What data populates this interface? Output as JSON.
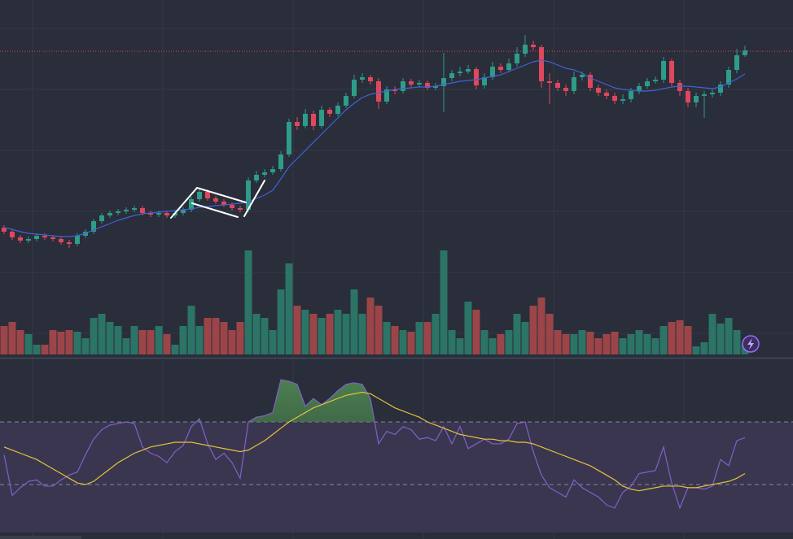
{
  "chart_data": [
    {
      "type": "candlestick",
      "up_color": "#2e9c88",
      "down_color": "#e0475d",
      "categories": [
        null,
        null,
        null,
        null,
        null,
        null,
        null,
        null,
        null,
        null,
        null,
        null,
        null,
        null,
        null,
        null,
        null,
        null,
        null,
        null,
        null,
        null,
        null,
        null,
        null,
        null,
        null,
        null,
        null,
        null,
        null,
        null,
        null,
        null,
        null,
        null,
        null,
        null,
        null,
        null,
        null,
        null,
        null,
        null,
        null,
        null,
        null,
        null,
        null,
        null,
        null,
        null,
        null,
        null,
        null,
        null,
        null,
        null,
        null,
        null,
        null,
        null,
        null,
        null,
        null,
        null,
        null,
        null,
        null,
        null,
        null,
        null,
        null,
        null,
        null,
        null,
        null,
        null,
        null,
        null,
        null,
        null,
        null,
        null,
        null,
        null,
        null,
        null,
        null,
        null,
        null,
        null
      ],
      "open": [
        120,
        115,
        108,
        104,
        106,
        110,
        108,
        106,
        102,
        100,
        110,
        115,
        128,
        135,
        138,
        140,
        142,
        144,
        138,
        136,
        138,
        135,
        138,
        142,
        155,
        164,
        156,
        152,
        148,
        144,
        142,
        178,
        185,
        188,
        192,
        210,
        250,
        245,
        260,
        245,
        265,
        260,
        270,
        282,
        302,
        305,
        300,
        275,
        290,
        288,
        300,
        296,
        298,
        292,
        294,
        304,
        310,
        312,
        315,
        295,
        305,
        318,
        314,
        322,
        334,
        345,
        342,
        300,
        298,
        292,
        288,
        305,
        308,
        292,
        286,
        282,
        276,
        278,
        288,
        294,
        300,
        302,
        325,
        298,
        288,
        274,
        282,
        284,
        286,
        296,
        314,
        332
      ],
      "high": [
        123,
        118,
        111,
        109,
        113,
        113,
        111,
        109,
        105,
        113,
        118,
        131,
        138,
        141,
        143,
        145,
        147,
        147,
        141,
        141,
        141,
        141,
        145,
        158,
        168,
        167,
        159,
        155,
        151,
        147,
        182,
        190,
        192,
        196,
        214,
        254,
        256,
        266,
        264,
        270,
        268,
        274,
        286,
        308,
        310,
        308,
        304,
        294,
        294,
        304,
        303,
        302,
        301,
        298,
        335,
        314,
        318,
        320,
        318,
        310,
        324,
        322,
        328,
        342,
        357,
        350,
        345,
        310,
        302,
        296,
        312,
        312,
        311,
        296,
        290,
        286,
        284,
        292,
        298,
        304,
        306,
        330,
        328,
        302,
        292,
        286,
        288,
        290,
        300,
        318,
        340,
        344
      ],
      "low": [
        112,
        105,
        101,
        101,
        103,
        105,
        103,
        99,
        95,
        97,
        107,
        112,
        125,
        132,
        135,
        137,
        139,
        135,
        133,
        133,
        132,
        132,
        135,
        139,
        152,
        153,
        149,
        145,
        141,
        139,
        139,
        175,
        182,
        185,
        189,
        207,
        240,
        242,
        240,
        242,
        256,
        257,
        267,
        279,
        298,
        296,
        266,
        272,
        284,
        285,
        293,
        293,
        289,
        289,
        262,
        300,
        306,
        309,
        290,
        291,
        302,
        310,
        311,
        318,
        330,
        338,
        292,
        272,
        288,
        282,
        284,
        301,
        288,
        282,
        278,
        272,
        272,
        274,
        284,
        291,
        297,
        298,
        294,
        282,
        268,
        268,
        255,
        280,
        282,
        292,
        310,
        330
      ],
      "close": [
        115,
        108,
        104,
        106,
        110,
        108,
        106,
        102,
        100,
        110,
        115,
        128,
        135,
        138,
        140,
        142,
        144,
        138,
        136,
        138,
        135,
        138,
        142,
        155,
        164,
        156,
        152,
        148,
        144,
        142,
        178,
        185,
        188,
        192,
        210,
        250,
        245,
        260,
        245,
        265,
        260,
        270,
        282,
        302,
        305,
        300,
        275,
        290,
        288,
        300,
        296,
        298,
        292,
        294,
        304,
        310,
        312,
        315,
        295,
        305,
        318,
        314,
        322,
        334,
        345,
        342,
        300,
        298,
        292,
        288,
        305,
        308,
        292,
        286,
        282,
        276,
        278,
        288,
        294,
        300,
        302,
        325,
        298,
        288,
        274,
        282,
        284,
        286,
        296,
        314,
        332,
        338
      ],
      "series": [
        {
          "color": "#3f63d6",
          "values": [
            120,
            118,
            115,
            113,
            112,
            111,
            110,
            109,
            109,
            110,
            113,
            117,
            121,
            125,
            129,
            132,
            135,
            137,
            138,
            139,
            140,
            141,
            142,
            143,
            145,
            146,
            147,
            148,
            149,
            150,
            152,
            156,
            160,
            166,
            180,
            195,
            205,
            215,
            225,
            235,
            245,
            255,
            265,
            273,
            280,
            284,
            286,
            288,
            290,
            291,
            292,
            293,
            293,
            294,
            296,
            298,
            300,
            301,
            302,
            304,
            306,
            308,
            312,
            316,
            320,
            324,
            326,
            324,
            320,
            316,
            314,
            310,
            304,
            300,
            296,
            292,
            290,
            289,
            288,
            288,
            289,
            291,
            293,
            294,
            294,
            293,
            292,
            291,
            293,
            298,
            303,
            309
          ]
        }
      ],
      "price_line": 337,
      "price_line_color": "#e0475d",
      "ylim": [
        90,
        360
      ]
    },
    {
      "type": "bar",
      "up_color": "#2b7466",
      "down_color": "#9c4548",
      "values": [
        35,
        40,
        30,
        25,
        12,
        12,
        30,
        28,
        30,
        28,
        20,
        45,
        50,
        40,
        35,
        20,
        35,
        30,
        30,
        35,
        25,
        12,
        35,
        60,
        35,
        45,
        45,
        40,
        30,
        40,
        128,
        50,
        45,
        30,
        80,
        112,
        60,
        55,
        50,
        45,
        50,
        55,
        50,
        80,
        50,
        70,
        60,
        40,
        35,
        30,
        28,
        40,
        40,
        50,
        128,
        30,
        20,
        65,
        55,
        30,
        20,
        25,
        30,
        50,
        40,
        60,
        70,
        50,
        30,
        25,
        25,
        30,
        28,
        20,
        25,
        28,
        20,
        25,
        30,
        25,
        20,
        35,
        40,
        42,
        35,
        10,
        15,
        50,
        38,
        45,
        30,
        12
      ],
      "ylim": [
        0,
        140
      ]
    },
    {
      "type": "line",
      "series": [
        {
          "color": "#7e62c9",
          "values": [
            49,
            23,
            28,
            32,
            33,
            29,
            29,
            33,
            36,
            38,
            49,
            59,
            65,
            68,
            69,
            70,
            69,
            54,
            50,
            48,
            44,
            51,
            55,
            67,
            72,
            56,
            46,
            50,
            44,
            34,
            70,
            73,
            74,
            76,
            97,
            96,
            94,
            80,
            85,
            81,
            85,
            90,
            94,
            95,
            94,
            85,
            56,
            64,
            62,
            67,
            65,
            59,
            60,
            58,
            67,
            56,
            67,
            53,
            56,
            59,
            56,
            56,
            59,
            69,
            70,
            51,
            36,
            28,
            25,
            22,
            33,
            28,
            25,
            22,
            17,
            15,
            25,
            29,
            37,
            38,
            39,
            54,
            31,
            15,
            28,
            28,
            27,
            29,
            46,
            42,
            58,
            60
          ]
        },
        {
          "color": "#e3c33a",
          "values": [
            54,
            52,
            50,
            48,
            46,
            43,
            40,
            37,
            34,
            31,
            30,
            32,
            36,
            40,
            44,
            47,
            50,
            52,
            54,
            55,
            56,
            57,
            57,
            57,
            56,
            55,
            54,
            53,
            52,
            51,
            52,
            55,
            58,
            62,
            66,
            70,
            73,
            76,
            79,
            81,
            83,
            85,
            87,
            88,
            89,
            88,
            85,
            82,
            79,
            77,
            75,
            73,
            70,
            68,
            66,
            64,
            62,
            61,
            60,
            59,
            59,
            58,
            58,
            57,
            57,
            56,
            54,
            52,
            50,
            48,
            46,
            44,
            42,
            39,
            36,
            33,
            29,
            27,
            26,
            27,
            28,
            29,
            29,
            29,
            28,
            28,
            29,
            30,
            31,
            32,
            34,
            37
          ]
        }
      ],
      "levels": [
        30,
        70
      ],
      "band_color": "#3a3650",
      "fill_color": "#3f6b45",
      "ylim": [
        0,
        100
      ]
    }
  ]
}
